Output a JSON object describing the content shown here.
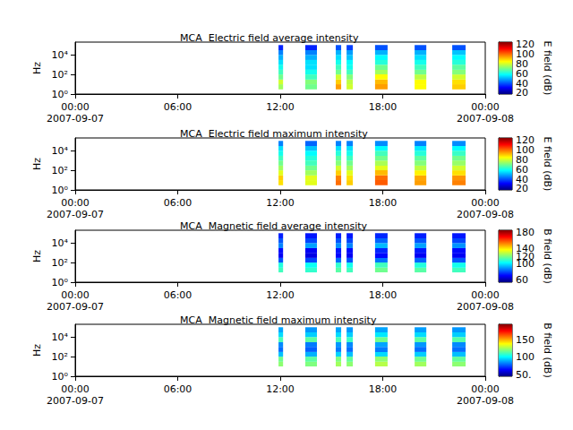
{
  "chart_data": [
    {
      "type": "heatmap",
      "title": "MCA  Electric field average intensity",
      "ylabel": "Hz",
      "log": "y",
      "xlim": [
        "2007-09-07T00:00",
        "2007-09-08T00:00"
      ],
      "xticks": [
        {
          "value": "2007-09-07T00:00",
          "label": "00:00\n2007-09-07"
        },
        {
          "value": "2007-09-07T06:00",
          "label": "06:00"
        },
        {
          "value": "2007-09-07T12:00",
          "label": "12:00"
        },
        {
          "value": "2007-09-07T18:00",
          "label": "18:00"
        },
        {
          "value": "2007-09-08T00:00",
          "label": "00:00\n2007-09-08"
        }
      ],
      "ylim": [
        1,
        200000
      ],
      "yticks": [
        {
          "value": 1,
          "label": "10⁰"
        },
        {
          "value": 100,
          "label": "10²"
        },
        {
          "value": 10000,
          "label": "10⁴"
        }
      ],
      "time_bins": [
        [
          "2007-09-07T11:54",
          "2007-09-07T12:10"
        ],
        [
          "2007-09-07T13:28",
          "2007-09-07T14:09"
        ],
        [
          "2007-09-07T15:15",
          "2007-09-07T15:34"
        ],
        [
          "2007-09-07T15:53",
          "2007-09-07T16:15"
        ],
        [
          "2007-09-07T17:33",
          "2007-09-07T18:17"
        ],
        [
          "2007-09-07T19:52",
          "2007-09-07T20:33"
        ],
        [
          "2007-09-07T22:04",
          "2007-09-07T22:51"
        ]
      ],
      "freq_bins": [
        3,
        10,
        30,
        100,
        300,
        1000,
        3000,
        10000,
        30000,
        100000
      ],
      "cells": [
        [
          75,
          80,
          70,
          65,
          60,
          55,
          50,
          45,
          35
        ],
        [
          70,
          72,
          65,
          60,
          55,
          55,
          50,
          45,
          35
        ],
        [
          95,
          90,
          80,
          70,
          65,
          60,
          55,
          50,
          40
        ],
        [
          80,
          78,
          72,
          65,
          60,
          58,
          52,
          48,
          38
        ],
        [
          95,
          92,
          85,
          75,
          70,
          62,
          58,
          50,
          40
        ],
        [
          85,
          85,
          78,
          70,
          65,
          60,
          55,
          50,
          40
        ],
        [
          90,
          88,
          80,
          72,
          68,
          62,
          58,
          52,
          40
        ]
      ],
      "colorbar": {
        "label": "E field (dB)",
        "range": [
          18,
          125
        ],
        "ticks": [
          20,
          40,
          60,
          80,
          100,
          120
        ]
      }
    },
    {
      "type": "heatmap",
      "title": "MCA  Electric field maximum intensity",
      "ylabel": "Hz",
      "log": "y",
      "xlim": [
        "2007-09-07T00:00",
        "2007-09-08T00:00"
      ],
      "xticks": [
        {
          "value": "2007-09-07T00:00",
          "label": "00:00\n2007-09-07"
        },
        {
          "value": "2007-09-07T06:00",
          "label": "06:00"
        },
        {
          "value": "2007-09-07T12:00",
          "label": "12:00"
        },
        {
          "value": "2007-09-07T18:00",
          "label": "18:00"
        },
        {
          "value": "2007-09-08T00:00",
          "label": "00:00\n2007-09-08"
        }
      ],
      "ylim": [
        1,
        200000
      ],
      "yticks": [
        {
          "value": 1,
          "label": "10⁰"
        },
        {
          "value": 100,
          "label": "10²"
        },
        {
          "value": 10000,
          "label": "10⁴"
        }
      ],
      "time_bins": [
        [
          "2007-09-07T11:54",
          "2007-09-07T12:10"
        ],
        [
          "2007-09-07T13:28",
          "2007-09-07T14:09"
        ],
        [
          "2007-09-07T15:15",
          "2007-09-07T15:34"
        ],
        [
          "2007-09-07T15:53",
          "2007-09-07T16:15"
        ],
        [
          "2007-09-07T17:33",
          "2007-09-07T18:17"
        ],
        [
          "2007-09-07T19:52",
          "2007-09-07T20:33"
        ],
        [
          "2007-09-07T22:04",
          "2007-09-07T22:51"
        ]
      ],
      "freq_bins": [
        3,
        10,
        30,
        100,
        300,
        1000,
        3000,
        10000,
        30000,
        100000
      ],
      "cells": [
        [
          88,
          90,
          82,
          75,
          70,
          65,
          60,
          55,
          45
        ],
        [
          82,
          82,
          75,
          70,
          65,
          62,
          58,
          52,
          42
        ],
        [
          100,
          98,
          90,
          80,
          72,
          68,
          62,
          55,
          45
        ],
        [
          90,
          88,
          82,
          75,
          70,
          65,
          60,
          55,
          45
        ],
        [
          102,
          100,
          92,
          82,
          76,
          70,
          65,
          58,
          46
        ],
        [
          95,
          94,
          86,
          78,
          72,
          68,
          62,
          56,
          45
        ],
        [
          98,
          96,
          88,
          80,
          74,
          70,
          64,
          58,
          46
        ]
      ],
      "colorbar": {
        "label": "E field (dB)",
        "range": [
          18,
          125
        ],
        "ticks": [
          20,
          40,
          60,
          80,
          100,
          120
        ]
      }
    },
    {
      "type": "heatmap",
      "title": "MCA  Magnetic field average intensity",
      "ylabel": "Hz",
      "log": "y",
      "xlim": [
        "2007-09-07T00:00",
        "2007-09-08T00:00"
      ],
      "xticks": [
        {
          "value": "2007-09-07T00:00",
          "label": "00:00\n2007-09-07"
        },
        {
          "value": "2007-09-07T06:00",
          "label": "06:00"
        },
        {
          "value": "2007-09-07T12:00",
          "label": "12:00"
        },
        {
          "value": "2007-09-07T18:00",
          "label": "18:00"
        },
        {
          "value": "2007-09-08T00:00",
          "label": "00:00\n2007-09-08"
        }
      ],
      "ylim": [
        1,
        200000
      ],
      "yticks": [
        {
          "value": 1,
          "label": "10⁰"
        },
        {
          "value": 100,
          "label": "10²"
        },
        {
          "value": 10000,
          "label": "10⁴"
        }
      ],
      "time_bins": [
        [
          "2007-09-07T11:54",
          "2007-09-07T12:10"
        ],
        [
          "2007-09-07T13:28",
          "2007-09-07T14:09"
        ],
        [
          "2007-09-07T15:15",
          "2007-09-07T15:34"
        ],
        [
          "2007-09-07T15:53",
          "2007-09-07T16:15"
        ],
        [
          "2007-09-07T17:33",
          "2007-09-07T18:17"
        ],
        [
          "2007-09-07T19:52",
          "2007-09-07T20:33"
        ],
        [
          "2007-09-07T22:04",
          "2007-09-07T22:51"
        ]
      ],
      "freq_bins": [
        10,
        30,
        100,
        300,
        1000,
        3000,
        10000,
        30000,
        100000
      ],
      "cells": [
        [
          112,
          108,
          82,
          70,
          72,
          88,
          82,
          75
        ],
        [
          110,
          105,
          80,
          68,
          70,
          92,
          80,
          74
        ],
        [
          115,
          110,
          85,
          72,
          74,
          90,
          82,
          75
        ],
        [
          112,
          106,
          82,
          70,
          72,
          88,
          80,
          74
        ],
        [
          118,
          112,
          86,
          72,
          76,
          95,
          84,
          76
        ],
        [
          115,
          108,
          84,
          70,
          74,
          92,
          82,
          75
        ],
        [
          112,
          106,
          82,
          70,
          72,
          90,
          80,
          74
        ]
      ],
      "colorbar": {
        "label": "B field (dB)",
        "range": [
          55,
          185
        ],
        "ticks": [
          60,
          80,
          100,
          120,
          140,
          160,
          180
        ]
      }
    },
    {
      "type": "heatmap",
      "title": "MCA  Magnetic field maximum intensity",
      "ylabel": "Hz",
      "log": "y",
      "xlim": [
        "2007-09-07T00:00",
        "2007-09-08T00:00"
      ],
      "xticks": [
        {
          "value": "2007-09-07T00:00",
          "label": "00:00\n2007-09-07"
        },
        {
          "value": "2007-09-07T06:00",
          "label": "06:00"
        },
        {
          "value": "2007-09-07T12:00",
          "label": "12:00"
        },
        {
          "value": "2007-09-07T18:00",
          "label": "18:00"
        },
        {
          "value": "2007-09-08T00:00",
          "label": "00:00\n2007-09-08"
        }
      ],
      "ylim": [
        1,
        200000
      ],
      "yticks": [
        {
          "value": 1,
          "label": "10⁰"
        },
        {
          "value": 100,
          "label": "10²"
        },
        {
          "value": 10000,
          "label": "10⁴"
        }
      ],
      "time_bins": [
        [
          "2007-09-07T11:54",
          "2007-09-07T12:10"
        ],
        [
          "2007-09-07T13:28",
          "2007-09-07T14:09"
        ],
        [
          "2007-09-07T15:15",
          "2007-09-07T15:34"
        ],
        [
          "2007-09-07T15:53",
          "2007-09-07T16:15"
        ],
        [
          "2007-09-07T17:33",
          "2007-09-07T18:17"
        ],
        [
          "2007-09-07T19:52",
          "2007-09-07T20:33"
        ],
        [
          "2007-09-07T22:04",
          "2007-09-07T22:51"
        ]
      ],
      "freq_bins": [
        10,
        30,
        100,
        300,
        1000,
        3000,
        10000,
        30000,
        100000
      ],
      "cells": [
        [
          122,
          118,
          92,
          80,
          84,
          112,
          96,
          88
        ],
        [
          120,
          115,
          90,
          78,
          82,
          115,
          94,
          86
        ],
        [
          125,
          120,
          95,
          82,
          86,
          112,
          96,
          88
        ],
        [
          122,
          116,
          92,
          80,
          84,
          110,
          94,
          86
        ],
        [
          128,
          122,
          96,
          82,
          88,
          118,
          98,
          88
        ],
        [
          125,
          118,
          94,
          80,
          86,
          115,
          96,
          87
        ],
        [
          122,
          116,
          92,
          80,
          84,
          114,
          94,
          86
        ]
      ],
      "colorbar": {
        "label": "B field (dB)",
        "range": [
          45,
          195
        ],
        "ticks": [
          {
            "value": 50,
            "label": "50."
          },
          100,
          150
        ]
      }
    }
  ]
}
